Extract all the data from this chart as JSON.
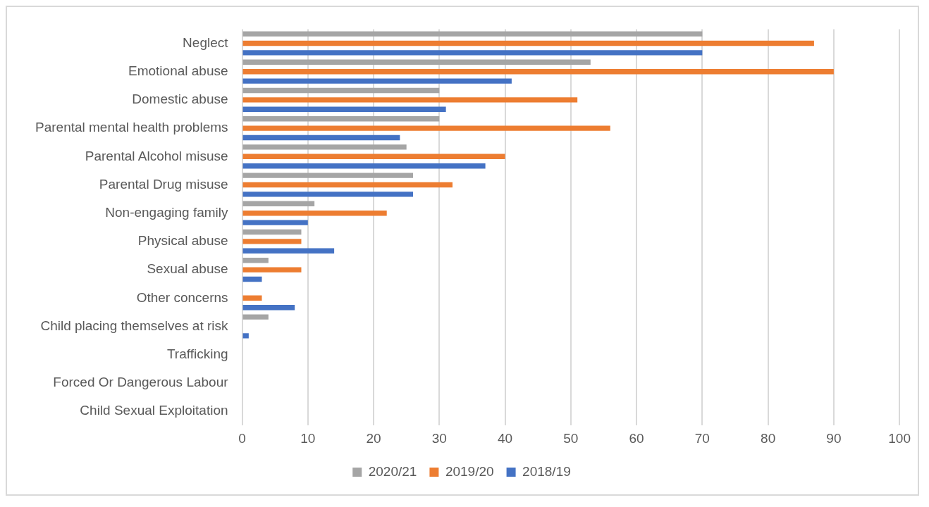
{
  "chart_data": {
    "type": "bar",
    "orientation": "horizontal",
    "categories": [
      "Neglect",
      "Emotional abuse",
      "Domestic abuse",
      "Parental mental health problems",
      "Parental Alcohol misuse",
      "Parental Drug misuse",
      "Non-engaging family",
      "Physical abuse",
      "Sexual abuse",
      "Other concerns",
      "Child placing themselves at risk",
      "Trafficking",
      "Forced Or Dangerous Labour",
      "Child Sexual Exploitation"
    ],
    "series": [
      {
        "name": "2020/21",
        "color": "#a5a5a5",
        "values": [
          70,
          53,
          30,
          30,
          25,
          26,
          11,
          9,
          4,
          0,
          4,
          0,
          0,
          0
        ]
      },
      {
        "name": "2019/20",
        "color": "#ed7d31",
        "values": [
          87,
          90,
          51,
          56,
          40,
          32,
          22,
          9,
          9,
          3,
          0,
          0,
          0,
          0
        ]
      },
      {
        "name": "2018/19",
        "color": "#4472c4",
        "values": [
          70,
          41,
          31,
          24,
          37,
          26,
          10,
          14,
          3,
          8,
          1,
          0,
          0,
          0
        ]
      }
    ],
    "xlim": [
      0,
      100
    ],
    "xticks": [
      0,
      10,
      20,
      30,
      40,
      50,
      60,
      70,
      80,
      90,
      100
    ],
    "grid": "x",
    "legend": "bottom"
  }
}
